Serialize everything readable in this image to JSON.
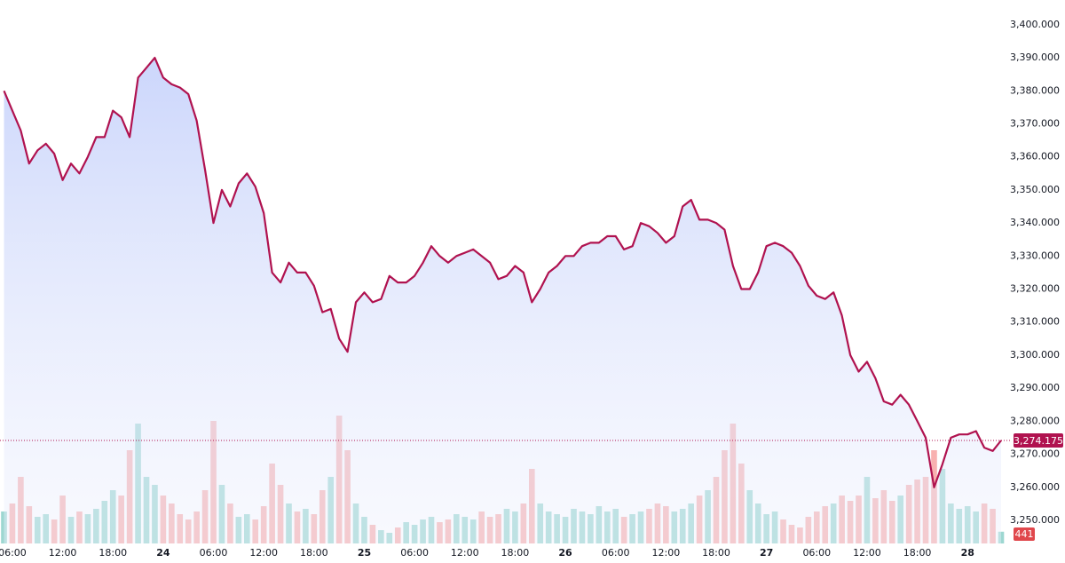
{
  "chart_data": {
    "type": "area",
    "categories": [
      null,
      "06:00",
      null,
      null,
      null,
      null,
      null,
      "12:00",
      null,
      null,
      null,
      null,
      null,
      "18:00",
      null,
      null,
      null,
      null,
      null,
      "24",
      null,
      null,
      null,
      null,
      null,
      "06:00",
      null,
      null,
      null,
      null,
      null,
      "12:00",
      null,
      null,
      null,
      null,
      null,
      "18:00",
      null,
      null,
      null,
      null,
      null,
      "25",
      null,
      null,
      null,
      null,
      null,
      "06:00",
      null,
      null,
      null,
      null,
      null,
      "12:00",
      null,
      null,
      null,
      null,
      null,
      "18:00",
      null,
      null,
      null,
      null,
      null,
      "26",
      null,
      null,
      null,
      null,
      null,
      "06:00",
      null,
      null,
      null,
      null,
      null,
      "12:00",
      null,
      null,
      null,
      null,
      null,
      "18:00",
      null,
      null,
      null,
      null,
      null,
      "27",
      null,
      null,
      null,
      null,
      null,
      "06:00",
      null,
      null,
      null,
      null,
      null,
      "12:00",
      null,
      null,
      null,
      null,
      null,
      "18:00",
      null,
      null,
      null,
      null,
      null,
      "28",
      null,
      null,
      null,
      null
    ],
    "series": [
      {
        "color": "#b0124f",
        "values": [
          3380,
          3374,
          3368,
          3358,
          3362,
          3364,
          3361,
          3353,
          3358,
          3355,
          3360,
          3366,
          3366,
          3374,
          3372,
          3366,
          3384,
          3387,
          3390,
          3384,
          3382,
          3381,
          3379,
          3371,
          3356,
          3340,
          3350,
          3345,
          3352,
          3355,
          3351,
          3343,
          3325,
          3322,
          3328,
          3325,
          3325,
          3321,
          3313,
          3314,
          3305,
          3301,
          3316,
          3319,
          3316,
          3317,
          3324,
          3322,
          3322,
          3324,
          3328,
          3333,
          3330,
          3328,
          3330,
          3331,
          3332,
          3330,
          3328,
          3323,
          3324,
          3327,
          3325,
          3316,
          3320,
          3325,
          3327,
          3330,
          3330,
          3333,
          3334,
          3334,
          3336,
          3336,
          3332,
          3333,
          3340,
          3339,
          3337,
          3334,
          3336,
          3345,
          3347,
          3341,
          3341,
          3340,
          3338,
          3327,
          3320,
          3320,
          3325,
          3333,
          3334,
          3333,
          3331,
          3327,
          3321,
          3318,
          3317,
          3319,
          3312,
          3300,
          3295,
          3298,
          3293,
          3286,
          3285,
          3288,
          3285,
          3280,
          3275,
          3260,
          3267,
          3275,
          3276,
          3276,
          3277,
          3272,
          3271,
          3274.175
        ]
      },
      {
        "type": "bar",
        "axis": "y2",
        "colors": [
          "#26a69a",
          "#ef5350"
        ],
        "values": [
          1200,
          1500,
          2500,
          1400,
          1000,
          1100,
          900,
          1800,
          1000,
          1200,
          1100,
          1300,
          1600,
          2000,
          1800,
          3500,
          4500,
          2500,
          2200,
          1800,
          1500,
          1100,
          900,
          1200,
          2000,
          4600,
          2200,
          1500,
          1000,
          1100,
          900,
          1400,
          3000,
          2200,
          1500,
          1200,
          1300,
          1100,
          2000,
          2500,
          4800,
          3500,
          1500,
          1000,
          700,
          500,
          400,
          600,
          800,
          700,
          900,
          1000,
          800,
          900,
          1100,
          1000,
          900,
          1200,
          1000,
          1100,
          1300,
          1200,
          1500,
          2800,
          1500,
          1200,
          1100,
          1000,
          1300,
          1200,
          1100,
          1400,
          1200,
          1300,
          1000,
          1100,
          1200,
          1300,
          1500,
          1400,
          1200,
          1300,
          1500,
          1800,
          2000,
          2500,
          3500,
          4500,
          3000,
          2000,
          1500,
          1100,
          1200,
          900,
          700,
          600,
          1000,
          1200,
          1400,
          1500,
          1800,
          1600,
          1800,
          2500,
          1700,
          2000,
          1600,
          1800,
          2200,
          2400,
          2500,
          3500,
          2800,
          1500,
          1300,
          1400,
          1200,
          1500,
          1300,
          441
        ]
      }
    ],
    "last_label": "3,274.175",
    "ylim": [
      3243,
      3407.5
    ],
    "yticks": [
      {
        "value": 3250,
        "label": "3,250.000"
      },
      {
        "value": 3260,
        "label": "3,260.000"
      },
      {
        "value": 3270,
        "label": "3,270.000"
      },
      {
        "value": 3280,
        "label": "3,280.000"
      },
      {
        "value": 3290,
        "label": "3,290.000"
      },
      {
        "value": 3300,
        "label": "3,300.000"
      },
      {
        "value": 3310,
        "label": "3,310.000"
      },
      {
        "value": 3320,
        "label": "3,320.000"
      },
      {
        "value": 3330,
        "label": "3,330.000"
      },
      {
        "value": 3340,
        "label": "3,340.000"
      },
      {
        "value": 3350,
        "label": "3,350.000"
      },
      {
        "value": 3360,
        "label": "3,360.000"
      },
      {
        "value": 3370,
        "label": "3,370.000"
      },
      {
        "value": 3380,
        "label": "3,380.000"
      },
      {
        "value": 3390,
        "label": "3,390.000"
      },
      {
        "value": 3400,
        "label": "3,400.000"
      }
    ],
    "y2lim": [
      0,
      5000
    ],
    "grid": false
  }
}
